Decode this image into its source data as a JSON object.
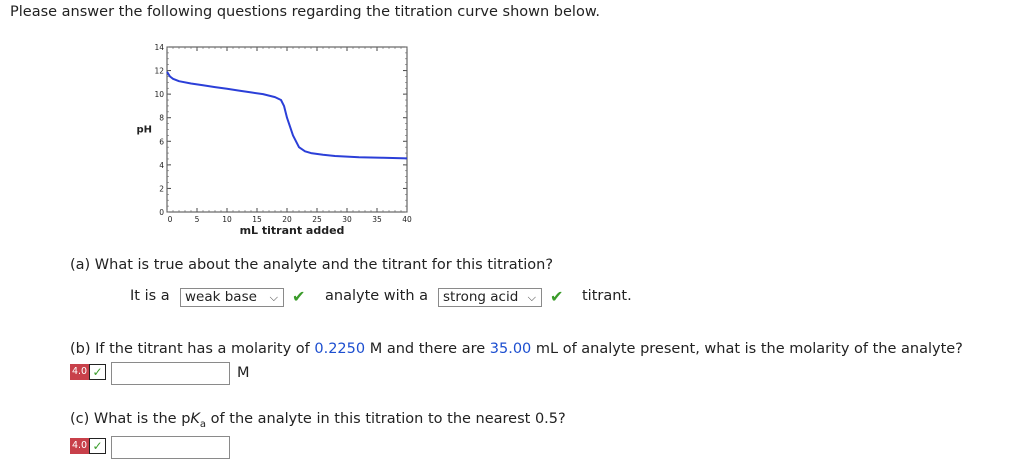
{
  "intro": "Please answer the following questions regarding the titration curve shown below.",
  "chart_data": {
    "type": "line",
    "xlabel": "mL titrant added",
    "ylabel": "pH",
    "xlim": [
      0,
      40
    ],
    "ylim": [
      0,
      14
    ],
    "xticks": [
      0,
      5,
      10,
      15,
      20,
      25,
      30,
      35,
      40
    ],
    "yticks": [
      0,
      2,
      4,
      6,
      8,
      10,
      12,
      14
    ],
    "line_color": "#2b3fd8",
    "grid": false,
    "series": [
      {
        "x": [
          0,
          0.5,
          1,
          2,
          4,
          6,
          8,
          10,
          12,
          14,
          16,
          18,
          19,
          19.5,
          20,
          21,
          22,
          23,
          24,
          26,
          28,
          32,
          36,
          40
        ],
        "y": [
          11.9,
          11.5,
          11.3,
          11.1,
          10.9,
          10.75,
          10.6,
          10.45,
          10.3,
          10.15,
          10.0,
          9.75,
          9.5,
          9.0,
          8.0,
          6.5,
          5.5,
          5.15,
          5.0,
          4.85,
          4.75,
          4.65,
          4.6,
          4.55
        ]
      }
    ]
  },
  "part_a": {
    "question": "(a) What is true about the analyte and the titrant for this titration?",
    "prefix": "It is a",
    "select1": "weak base",
    "middle": "analyte with a",
    "select2": "strong acid",
    "suffix": "titrant.",
    "check_mark": "✔"
  },
  "part_b": {
    "q_start": "(b) If the titrant has a molarity of",
    "molarity": "0.2250",
    "q_mid": "M and there are",
    "volume": "35.00",
    "q_end": "mL of analyte present, what is the molarity of the analyte?",
    "badge_num": "4.0",
    "badge_check": "✓",
    "unit": "M",
    "input_value": ""
  },
  "part_c": {
    "q_start": "(c) What is the p",
    "q_K": "K",
    "q_sub": "a",
    "q_end": "of the analyte in this titration to the nearest 0.5?",
    "badge_num": "4.0",
    "badge_check": "✓",
    "input_value": ""
  }
}
